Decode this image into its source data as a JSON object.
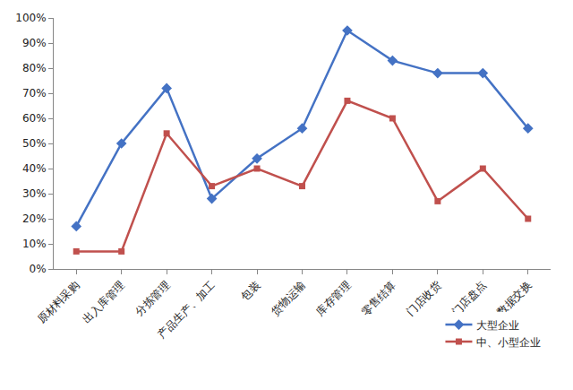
{
  "chart_data": {
    "type": "line",
    "categories": [
      "原材料采购",
      "出入库管理",
      "分拣管理",
      "产品生产、加工",
      "包装",
      "货物运输",
      "库存管理",
      "零售结算",
      "门店收货",
      "门店盘点",
      "数据交换"
    ],
    "series": [
      {
        "name": "大型企业",
        "color": "#4472c4",
        "marker": "diamond",
        "line_style": "solid",
        "values": [
          17,
          50,
          72,
          28,
          44,
          56,
          95,
          83,
          78,
          78,
          56
        ]
      },
      {
        "name": "中、小型企业",
        "color": "#c0504d",
        "marker": "square",
        "line_style": "solid",
        "values": [
          7,
          7,
          54,
          33,
          40,
          33,
          67,
          60,
          27,
          40,
          20
        ]
      }
    ],
    "ylim": [
      0,
      100
    ],
    "yticks": [
      {
        "value": 0,
        "label": "0%"
      },
      {
        "value": 10,
        "label": "10%"
      },
      {
        "value": 20,
        "label": "20%"
      },
      {
        "value": 30,
        "label": "30%"
      },
      {
        "value": 40,
        "label": "40%"
      },
      {
        "value": 50,
        "label": "50%"
      },
      {
        "value": 60,
        "label": "60%"
      },
      {
        "value": 70,
        "label": "70%"
      },
      {
        "value": 80,
        "label": "80%"
      },
      {
        "value": 90,
        "label": "90%"
      },
      {
        "value": 100,
        "label": "100%"
      }
    ],
    "grid": false,
    "legend": "lower right"
  }
}
